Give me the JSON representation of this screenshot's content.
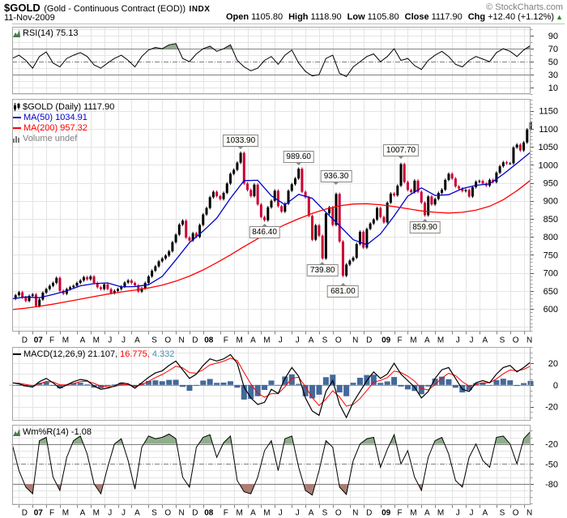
{
  "header": {
    "symbol": "$GOLD",
    "description": "(Gold - Continuous Contract (EOD))",
    "exchange": "INDX",
    "credit": "© StockCharts.com",
    "date": "11-Nov-2009",
    "quote": {
      "open_label": "Open",
      "open": "1105.80",
      "high_label": "High",
      "high": "1118.90",
      "low_label": "Low",
      "low": "1105.80",
      "close_label": "Close",
      "close": "1117.90",
      "chg_label": "Chg",
      "chg": "+12.40 (+1.12%)",
      "chg_arrow": "▲"
    }
  },
  "legends": {
    "rsi": "RSI(14) 75.13",
    "price_main": "$GOLD (Daily) 1117.90",
    "ma50": "MA(50) 1034.91",
    "ma200": "MA(200) 957.32",
    "volume": "Volume undef",
    "macd_name": "MACD(12,26,9)",
    "macd_v1": "21.107,",
    "macd_v2": "16.775,",
    "macd_v3": "4.332",
    "wmr": "Wm%R(14) -1.08"
  },
  "colors": {
    "up": "#000000",
    "down": "#cc0033",
    "ma50": "#0000cc",
    "ma200": "#ff0000",
    "rsi_line": "#000000",
    "rsi_fill": "#8fae8b",
    "macd_line": "#000000",
    "macd_signal": "#ff0000",
    "macd_hist": "#44699b",
    "macd_v3_color": "#4790ad",
    "wmr_line": "#000000",
    "wmr_fill_high": "#8fae8b",
    "wmr_fill_low": "#aa7e76",
    "grid": "#e4e4e4",
    "grid_dark": "#808080",
    "zero_line": "#999999",
    "panel_border": "#a6a6a6",
    "axis_text": "#000000",
    "credit": "#808080",
    "volume_label": "#808080",
    "chg_up": "#2f7d2f"
  },
  "chart_data": {
    "type": "candlestick+indicators",
    "title": "$GOLD Daily with RSI(14), MA(50), MA(200), MACD(12,26,9), Wm%R(14)",
    "x_range": "Dec-2006 to Nov-2009 (weekly-sampled)",
    "x_months": [
      {
        "label": "D",
        "week": 2
      },
      {
        "label": "07",
        "week": 6,
        "bold": true
      },
      {
        "label": "F",
        "week": 10
      },
      {
        "label": "M",
        "week": 14
      },
      {
        "label": "A",
        "week": 19
      },
      {
        "label": "M",
        "week": 23
      },
      {
        "label": "J",
        "week": 27
      },
      {
        "label": "J",
        "week": 31
      },
      {
        "label": "A",
        "week": 35
      },
      {
        "label": "S",
        "week": 40
      },
      {
        "label": "O",
        "week": 44
      },
      {
        "label": "N",
        "week": 48
      },
      {
        "label": "D",
        "week": 52
      },
      {
        "label": "08",
        "week": 56,
        "bold": true
      },
      {
        "label": "F",
        "week": 61
      },
      {
        "label": "M",
        "week": 65
      },
      {
        "label": "A",
        "week": 69
      },
      {
        "label": "M",
        "week": 73
      },
      {
        "label": "J",
        "week": 77
      },
      {
        "label": "J",
        "week": 82
      },
      {
        "label": "A",
        "week": 86
      },
      {
        "label": "S",
        "week": 90
      },
      {
        "label": "O",
        "week": 94
      },
      {
        "label": "N",
        "week": 99
      },
      {
        "label": "D",
        "week": 103
      },
      {
        "label": "09",
        "week": 108,
        "bold": true
      },
      {
        "label": "F",
        "week": 112
      },
      {
        "label": "M",
        "week": 116
      },
      {
        "label": "A",
        "week": 120
      },
      {
        "label": "M",
        "week": 124
      },
      {
        "label": "J",
        "week": 129
      },
      {
        "label": "J",
        "week": 133
      },
      {
        "label": "A",
        "week": 137
      },
      {
        "label": "S",
        "week": 142
      },
      {
        "label": "O",
        "week": 146
      },
      {
        "label": "N",
        "week": 150
      }
    ],
    "price_panel": {
      "ylim": [
        537,
        1183
      ],
      "yticks": [
        600,
        650,
        700,
        750,
        800,
        850,
        900,
        950,
        1000,
        1050,
        1100,
        1150
      ],
      "close": [
        628,
        638,
        646,
        632,
        622,
        636,
        640,
        608,
        626,
        645,
        655,
        664,
        672,
        686,
        650,
        642,
        655,
        660,
        664,
        672,
        679,
        688,
        682,
        690,
        672,
        660,
        655,
        668,
        655,
        644,
        650,
        655,
        662,
        673,
        679,
        672,
        665,
        648,
        657,
        672,
        690,
        706,
        718,
        732,
        740,
        748,
        760,
        785,
        806,
        834,
        845,
        798,
        790,
        810,
        800,
        833,
        862,
        880,
        910,
        925,
        913,
        905,
        922,
        948,
        975,
        986,
        1006,
        1033,
        948,
        930,
        913,
        945,
        890,
        855,
        846,
        882,
        900,
        928,
        885,
        870,
        892,
        928,
        946,
        962,
        989,
        925,
        910,
        858,
        792,
        832,
        803,
        740,
        865,
        882,
        833,
        919,
        787,
        692,
        723,
        734,
        742,
        780,
        814,
        770,
        822,
        837,
        848,
        880,
        855,
        840,
        895,
        920,
        915,
        942,
        1002,
        952,
        930,
        924,
        956,
        925,
        895,
        860,
        912,
        890,
        905,
        922,
        931,
        958,
        975,
        962,
        940,
        934,
        927,
        930,
        912,
        938,
        953,
        955,
        948,
        942,
        958,
        952,
        978,
        996,
        1007,
        1004,
        1004,
        1048,
        1056,
        1040,
        1062,
        1098,
        1117.9
      ],
      "ma_step": 4,
      "ma50": [
        628,
        633,
        631,
        640,
        650,
        664,
        670,
        672,
        661,
        662,
        667,
        690,
        736,
        784,
        816,
        852,
        907,
        956,
        957,
        914,
        889,
        918,
        907,
        868,
        831,
        792,
        778,
        808,
        858,
        913,
        936,
        915,
        917,
        934,
        943,
        947,
        974,
        1004,
        1034.91
      ],
      "ma200": [
        598,
        602,
        607,
        613,
        620,
        627,
        634,
        641,
        647,
        652,
        658,
        666,
        677,
        691,
        708,
        728,
        750,
        773,
        795,
        815,
        834,
        850,
        865,
        877,
        886,
        891,
        892,
        889,
        884,
        878,
        872,
        868,
        866,
        868,
        874,
        885,
        903,
        928,
        957.32
      ],
      "annotations": [
        {
          "text": "1033.90",
          "week": 67,
          "price": 1033.9,
          "side": "above"
        },
        {
          "text": "989.60",
          "week": 84,
          "price": 989.6,
          "side": "above"
        },
        {
          "text": "936.30",
          "week": 95,
          "price": 936.3,
          "side": "above"
        },
        {
          "text": "1007.70",
          "week": 114,
          "price": 1007.7,
          "side": "above"
        },
        {
          "text": "846.40",
          "week": 74,
          "price": 846.4,
          "side": "below"
        },
        {
          "text": "859.90",
          "week": 121,
          "price": 859.9,
          "side": "below"
        },
        {
          "text": "739.80",
          "week": 91,
          "price": 739.8,
          "side": "below"
        },
        {
          "text": "681.00",
          "week": 97,
          "price": 681.0,
          "side": "below"
        }
      ]
    },
    "rsi_panel": {
      "ylim": [
        0,
        104
      ],
      "yticks": [
        90,
        70,
        50,
        30,
        10
      ],
      "overbought": 70,
      "oversold": 30,
      "midline": 50,
      "step": 2,
      "values": [
        55,
        60,
        52,
        40,
        58,
        65,
        48,
        42,
        55,
        60,
        64,
        58,
        45,
        40,
        48,
        55,
        60,
        52,
        42,
        58,
        68,
        72,
        70,
        76,
        78,
        55,
        50,
        62,
        70,
        74,
        66,
        70,
        76,
        52,
        42,
        36,
        40,
        52,
        58,
        46,
        60,
        68,
        48,
        35,
        28,
        30,
        55,
        60,
        32,
        27,
        42,
        50,
        58,
        62,
        50,
        58,
        70,
        52,
        55,
        44,
        38,
        52,
        60,
        66,
        58,
        46,
        42,
        52,
        58,
        54,
        50,
        64,
        70,
        66,
        58,
        68,
        75.13
      ]
    },
    "macd_panel": {
      "ylim": [
        -33,
        35
      ],
      "yticks": [
        20,
        0,
        -20
      ],
      "step": 2,
      "values": [
        2,
        1,
        -1,
        -2,
        3,
        6,
        2,
        -3,
        0,
        3,
        5,
        4,
        -1,
        -4,
        -3,
        -1,
        2,
        1,
        -3,
        2,
        7,
        11,
        13,
        18,
        22,
        14,
        6,
        10,
        18,
        24,
        22,
        24,
        28,
        20,
        -2,
        -12,
        -18,
        -16,
        -4,
        -8,
        6,
        16,
        8,
        -12,
        -24,
        -28,
        -6,
        4,
        -18,
        -30,
        -16,
        -6,
        4,
        12,
        6,
        10,
        20,
        10,
        4,
        -2,
        -12,
        -6,
        6,
        14,
        16,
        6,
        -4,
        -6,
        2,
        4,
        2,
        10,
        16,
        18,
        12,
        16,
        21.1
      ]
    },
    "wmr_panel": {
      "ylim": [
        -112,
        9
      ],
      "yticks": [
        -20,
        -50,
        -80
      ],
      "upper": -20,
      "lower": -80,
      "mid": -50,
      "step": 2,
      "values": [
        -20,
        -60,
        -85,
        -95,
        -15,
        -10,
        -70,
        -90,
        -40,
        -15,
        -8,
        -35,
        -80,
        -95,
        -55,
        -20,
        -12,
        -45,
        -88,
        -25,
        -8,
        -12,
        -10,
        -5,
        -12,
        -70,
        -85,
        -25,
        -10,
        -6,
        -40,
        -18,
        -8,
        -75,
        -92,
        -95,
        -70,
        -30,
        -15,
        -60,
        -12,
        -8,
        -55,
        -90,
        -97,
        -60,
        -15,
        -25,
        -85,
        -96,
        -45,
        -20,
        -12,
        -10,
        -55,
        -28,
        -6,
        -50,
        -30,
        -70,
        -90,
        -40,
        -15,
        -10,
        -35,
        -75,
        -85,
        -40,
        -20,
        -45,
        -55,
        -10,
        -8,
        -20,
        -50,
        -12,
        -1.08
      ]
    }
  }
}
